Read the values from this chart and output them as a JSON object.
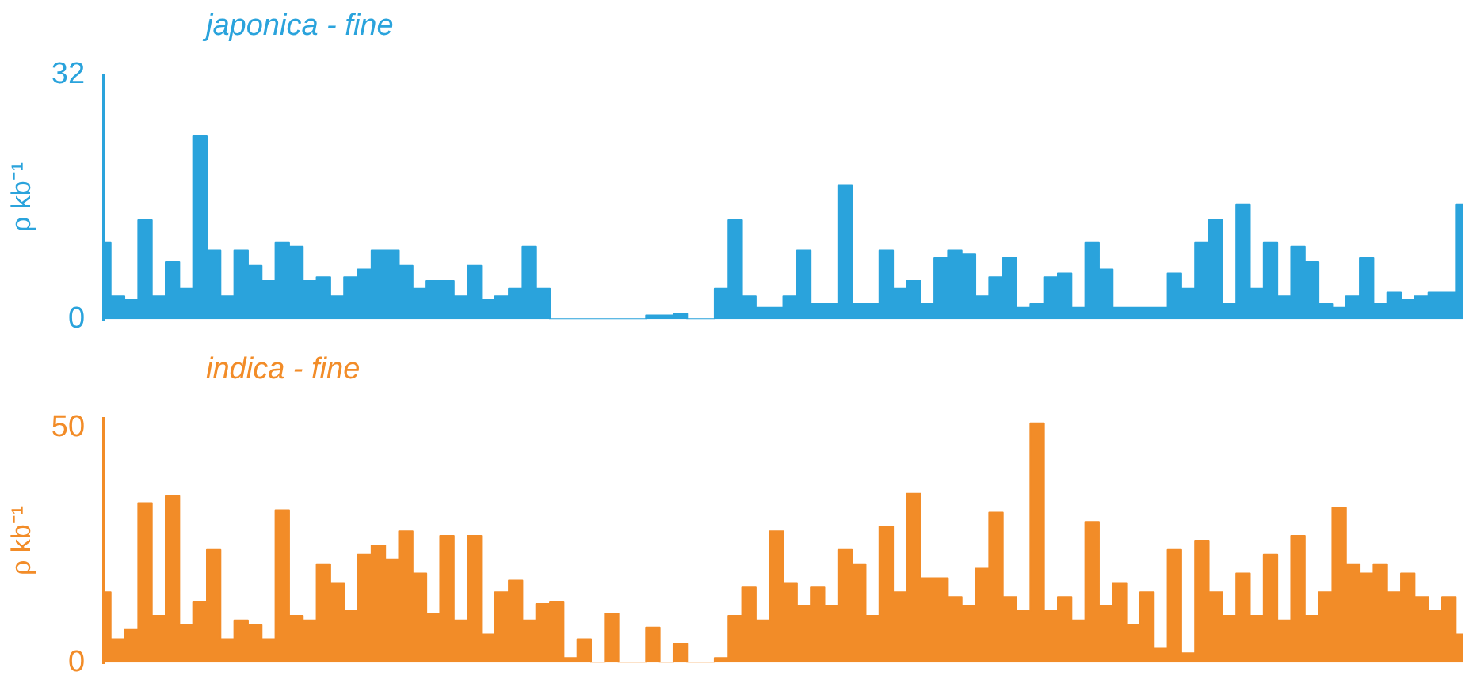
{
  "chart_data": [
    {
      "type": "area",
      "title": "japonica - fine",
      "ylabel": "ρ kb⁻¹",
      "color": "#2aa3dc",
      "ylim": [
        0,
        32
      ],
      "yticks": [
        0,
        32
      ],
      "grid": false,
      "legend": false,
      "tick_labels": "y",
      "categories": [
        null,
        null,
        null,
        null,
        null,
        null,
        null,
        null,
        null,
        null,
        null,
        null,
        null,
        null,
        null,
        null,
        null,
        null,
        null,
        null,
        null,
        null,
        null,
        null,
        null,
        null,
        null,
        null,
        null,
        null,
        null,
        null,
        null,
        null,
        null,
        null,
        null,
        null,
        null,
        null,
        null,
        null,
        null,
        null,
        null,
        null,
        null,
        null,
        null,
        null,
        null,
        null,
        null,
        null,
        null,
        null,
        null,
        null,
        null,
        null,
        null,
        null,
        null,
        null,
        null,
        null,
        null,
        null,
        null,
        null,
        null,
        null,
        null,
        null,
        null,
        null,
        null,
        null,
        null,
        null,
        null,
        null,
        null,
        null,
        null,
        null,
        null,
        null,
        null,
        null,
        null,
        null,
        null,
        null,
        null,
        null,
        null,
        null,
        null,
        null
      ],
      "values": [
        10,
        3,
        2.5,
        13,
        3,
        7.5,
        4,
        24,
        9,
        3,
        9,
        7,
        5,
        10,
        9.5,
        5,
        5.5,
        3,
        5.5,
        6.5,
        9,
        9,
        7,
        4,
        5,
        5,
        3,
        7,
        2.5,
        3,
        4,
        9.5,
        4,
        0,
        0,
        0,
        0,
        0,
        0,
        0,
        0.5,
        0.5,
        0.7,
        0,
        0,
        4,
        13,
        3,
        1.5,
        1.5,
        3,
        9,
        2,
        2,
        17.5,
        2,
        2,
        9,
        4,
        5,
        2,
        8,
        9,
        8.5,
        3,
        5.5,
        8,
        1.5,
        2,
        5.5,
        6,
        1.5,
        10,
        6.5,
        1.5,
        1.5,
        1.5,
        1.5,
        6,
        4,
        10,
        13,
        2,
        15,
        4,
        10,
        3,
        9.5,
        7.5,
        2,
        1.5,
        3,
        8,
        2,
        3.5,
        2.5,
        3,
        3.5,
        3.5,
        15
      ]
    },
    {
      "type": "area",
      "title": "indica - fine",
      "ylabel": "ρ kb⁻¹",
      "color": "#f28c28",
      "ylim": [
        0,
        52
      ],
      "yticks": [
        0,
        50
      ],
      "grid": false,
      "legend": false,
      "tick_labels": "y",
      "categories": [
        null,
        null,
        null,
        null,
        null,
        null,
        null,
        null,
        null,
        null,
        null,
        null,
        null,
        null,
        null,
        null,
        null,
        null,
        null,
        null,
        null,
        null,
        null,
        null,
        null,
        null,
        null,
        null,
        null,
        null,
        null,
        null,
        null,
        null,
        null,
        null,
        null,
        null,
        null,
        null,
        null,
        null,
        null,
        null,
        null,
        null,
        null,
        null,
        null,
        null,
        null,
        null,
        null,
        null,
        null,
        null,
        null,
        null,
        null,
        null,
        null,
        null,
        null,
        null,
        null,
        null,
        null,
        null,
        null,
        null,
        null,
        null,
        null,
        null,
        null,
        null,
        null,
        null,
        null,
        null,
        null,
        null,
        null,
        null,
        null,
        null,
        null,
        null,
        null,
        null,
        null,
        null,
        null,
        null,
        null,
        null,
        null,
        null,
        null,
        null
      ],
      "values": [
        15,
        5,
        7,
        34,
        10,
        35.5,
        8,
        13,
        24,
        5,
        9,
        8,
        5,
        32.5,
        10,
        9,
        21,
        17,
        11,
        23,
        25,
        22,
        28,
        19,
        10.5,
        27,
        9,
        27,
        6,
        15,
        17.5,
        9,
        12.5,
        13,
        1,
        5,
        0,
        10.5,
        0,
        0,
        7.5,
        0,
        4,
        0,
        0,
        1,
        10,
        16,
        9,
        28,
        17,
        12,
        16,
        12,
        24,
        21,
        10,
        29,
        15,
        36,
        18,
        18,
        14,
        12,
        20,
        32,
        14,
        11,
        51,
        11,
        14,
        9,
        30,
        12,
        17,
        8,
        15,
        3,
        24,
        2,
        26,
        15,
        10,
        19,
        10,
        23,
        9,
        27,
        10,
        15,
        33,
        21,
        19,
        21,
        15,
        19,
        14,
        11,
        14,
        6
      ]
    }
  ]
}
